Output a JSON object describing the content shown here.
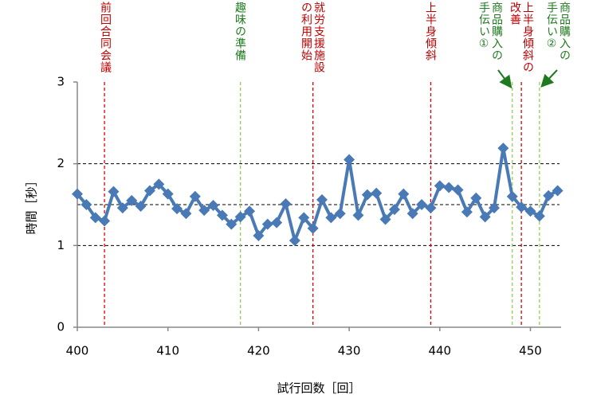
{
  "chart_data": {
    "type": "line",
    "x_label": "試行回数［回］",
    "y_label": "時間［秒］",
    "xlim": [
      400,
      453
    ],
    "xticks": [
      400,
      410,
      420,
      430,
      440,
      450
    ],
    "ylim": [
      0,
      3
    ],
    "yticks": [
      0,
      1,
      2,
      3
    ],
    "hlines": [
      1,
      1.5,
      2
    ],
    "series": [
      {
        "color": "#4a7ab5",
        "x": [
          400,
          401,
          402,
          403,
          404,
          405,
          406,
          407,
          408,
          409,
          410,
          411,
          412,
          413,
          414,
          415,
          416,
          417,
          418,
          419,
          420,
          421,
          422,
          423,
          424,
          425,
          426,
          427,
          428,
          429,
          430,
          431,
          432,
          433,
          434,
          435,
          436,
          437,
          438,
          439,
          440,
          441,
          442,
          443,
          444,
          445,
          446,
          447,
          448,
          449,
          450,
          451,
          452,
          453
        ],
        "values": [
          1.63,
          1.5,
          1.34,
          1.3,
          1.66,
          1.46,
          1.55,
          1.48,
          1.67,
          1.75,
          1.63,
          1.45,
          1.39,
          1.6,
          1.43,
          1.49,
          1.37,
          1.26,
          1.35,
          1.42,
          1.12,
          1.26,
          1.28,
          1.51,
          1.06,
          1.34,
          1.21,
          1.56,
          1.34,
          1.39,
          2.05,
          1.37,
          1.62,
          1.64,
          1.32,
          1.44,
          1.63,
          1.39,
          1.5,
          1.46,
          1.73,
          1.71,
          1.68,
          1.41,
          1.58,
          1.35,
          1.46,
          2.19,
          1.6,
          1.47,
          1.42,
          1.36,
          1.61,
          1.67
        ]
      }
    ],
    "annotations": [
      {
        "x": 403,
        "text": "前回合同会議",
        "color": "#c00000"
      },
      {
        "x": 418,
        "text": "趣味の準備",
        "color": "#1e7a1e"
      },
      {
        "x": 426,
        "text": "就労支援施設の利用開始",
        "color": "#c00000"
      },
      {
        "x": 439,
        "text": "上半身傾斜",
        "color": "#c00000"
      },
      {
        "x": 448,
        "text": "商品購入の手伝い①",
        "color": "#1e7a1e"
      },
      {
        "x": 449,
        "text": "上半身傾斜の改善",
        "color": "#c00000"
      },
      {
        "x": 451,
        "text": "商品購入の手伝い②",
        "color": "#1e7a1e"
      }
    ],
    "annotation_line_colors": [
      "#e00000",
      "#92d050",
      "#e00000",
      "#e00000",
      "#92d050",
      "#e00000",
      "#92d050"
    ]
  }
}
